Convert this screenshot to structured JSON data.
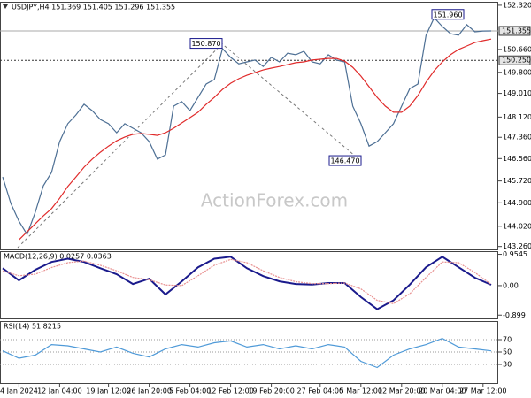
{
  "chart_data": [
    {
      "type": "line",
      "title": "USDJPY,H4 151.369 151.405 151.296 151.355",
      "watermark": "ActionForex.com",
      "categories": [
        null,
        null,
        "4 Jan 2024",
        null,
        null,
        null,
        null,
        "12 Jan 04:00",
        null,
        null,
        null,
        null,
        null,
        "19 Jan 12:00",
        null,
        null,
        null,
        null,
        "26 Jan 20:00",
        null,
        null,
        null,
        null,
        "5 Feb 04:00",
        null,
        null,
        null,
        null,
        "12 Feb 12:00",
        null,
        null,
        null,
        null,
        "19 Feb 20:00",
        null,
        null,
        null,
        null,
        null,
        "27 Feb 04:00",
        null,
        null,
        null,
        null,
        "5 Mar 12:00",
        null,
        null,
        null,
        null,
        "12 Mar 20:00",
        null,
        null,
        null,
        null,
        "20 Mar 04:00",
        null,
        null,
        null,
        null,
        "27 Mar 12:00",
        null
      ],
      "series": [
        {
          "color": "#4d6f94",
          "values": [
            145.87,
            144.88,
            144.21,
            143.71,
            144.54,
            145.54,
            146.04,
            147.2,
            147.87,
            148.2,
            148.6,
            148.36,
            148.03,
            147.87,
            147.53,
            147.87,
            147.7,
            147.53,
            147.2,
            146.54,
            146.7,
            148.53,
            148.7,
            148.36,
            148.86,
            149.36,
            149.53,
            150.69,
            150.36,
            150.12,
            150.19,
            150.26,
            150.02,
            150.36,
            150.19,
            150.52,
            150.46,
            150.59,
            150.19,
            150.12,
            150.46,
            150.26,
            150.19,
            148.53,
            147.87,
            147.03,
            147.2,
            147.53,
            147.87,
            148.53,
            149.19,
            149.36,
            151.19,
            151.85,
            151.52,
            151.25,
            151.19,
            151.59,
            151.32,
            151.35,
            151.355
          ]
        },
        {
          "color": "#e02b2b",
          "values": [
            null,
            null,
            143.51,
            143.81,
            144.11,
            144.41,
            144.68,
            145.07,
            145.51,
            145.87,
            146.24,
            146.54,
            146.8,
            147.03,
            147.23,
            147.37,
            147.47,
            147.5,
            147.47,
            147.43,
            147.53,
            147.7,
            147.9,
            148.1,
            148.3,
            148.6,
            148.86,
            149.16,
            149.39,
            149.56,
            149.69,
            149.79,
            149.89,
            149.96,
            150.02,
            150.09,
            150.16,
            150.19,
            150.26,
            150.29,
            150.32,
            150.32,
            150.22,
            149.99,
            149.66,
            149.26,
            148.86,
            148.53,
            148.3,
            148.3,
            148.53,
            148.93,
            149.43,
            149.86,
            150.19,
            150.46,
            150.66,
            150.79,
            150.92,
            150.99,
            151.05
          ]
        }
      ],
      "ylim": [
        143.15,
        152.45
      ],
      "yticks": [
        {
          "value": 152.32,
          "label": "152.320"
        },
        {
          "value": 150.66,
          "label": "150.660"
        },
        {
          "value": 149.8,
          "label": "149.800"
        },
        {
          "value": 149.01,
          "label": "149.010"
        },
        {
          "value": 148.12,
          "label": "148.120"
        },
        {
          "value": 147.36,
          "label": "147.360"
        },
        {
          "value": 146.56,
          "label": "146.560"
        },
        {
          "value": 145.72,
          "label": "145.720"
        },
        {
          "value": 144.9,
          "label": "144.900"
        },
        {
          "value": 144.02,
          "label": "144.020"
        },
        {
          "value": 143.26,
          "label": "143.260"
        }
      ],
      "levels": [
        {
          "value": 151.355,
          "label": "151.355"
        },
        {
          "value": 150.25,
          "label": "150.250"
        }
      ],
      "annotations": [
        {
          "value": 150.87,
          "label": "150.870"
        },
        {
          "value": 146.47,
          "label": "146.470"
        },
        {
          "value": 151.96,
          "label": "151.960"
        }
      ]
    },
    {
      "type": "line",
      "title": "MACD(12,26,9) 0.0257 0.0363",
      "series": [
        {
          "color": "#1a1a8c",
          "values": [
            0.53,
            0.16,
            0.48,
            0.72,
            0.82,
            0.72,
            0.53,
            0.35,
            0.05,
            0.21,
            -0.27,
            0.13,
            0.56,
            0.82,
            0.88,
            0.53,
            0.29,
            0.13,
            0.05,
            0.03,
            0.08,
            0.08,
            -0.35,
            -0.72,
            -0.45,
            0.03,
            0.56,
            0.88,
            0.56,
            0.24,
            0.0257
          ]
        },
        {
          "color": "#e89090",
          "values": [
            0.45,
            0.3,
            0.35,
            0.55,
            0.7,
            0.75,
            0.62,
            0.45,
            0.25,
            0.18,
            0.02,
            0.0,
            0.3,
            0.62,
            0.8,
            0.7,
            0.45,
            0.25,
            0.12,
            0.06,
            0.06,
            0.08,
            -0.1,
            -0.45,
            -0.55,
            -0.25,
            0.25,
            0.72,
            0.7,
            0.4,
            0.0363
          ]
        }
      ],
      "ylim": [
        -1.0,
        1.05
      ],
      "yticks": [
        0.9545,
        {
          "value": 0,
          "label": "0.00"
        },
        -0.899
      ]
    },
    {
      "type": "line",
      "title": "RSI(14) 51.8215",
      "series": [
        {
          "color": "#4f9ad8",
          "values": [
            52,
            40,
            45,
            62,
            60,
            55,
            50,
            58,
            48,
            42,
            55,
            62,
            58,
            65,
            68,
            58,
            62,
            55,
            60,
            55,
            62,
            58,
            35,
            25,
            45,
            55,
            62,
            72,
            58,
            55,
            51.8215
          ]
        }
      ],
      "ylim": [
        0,
        100
      ],
      "yticks": [
        70,
        50,
        30
      ],
      "grid": true
    }
  ]
}
